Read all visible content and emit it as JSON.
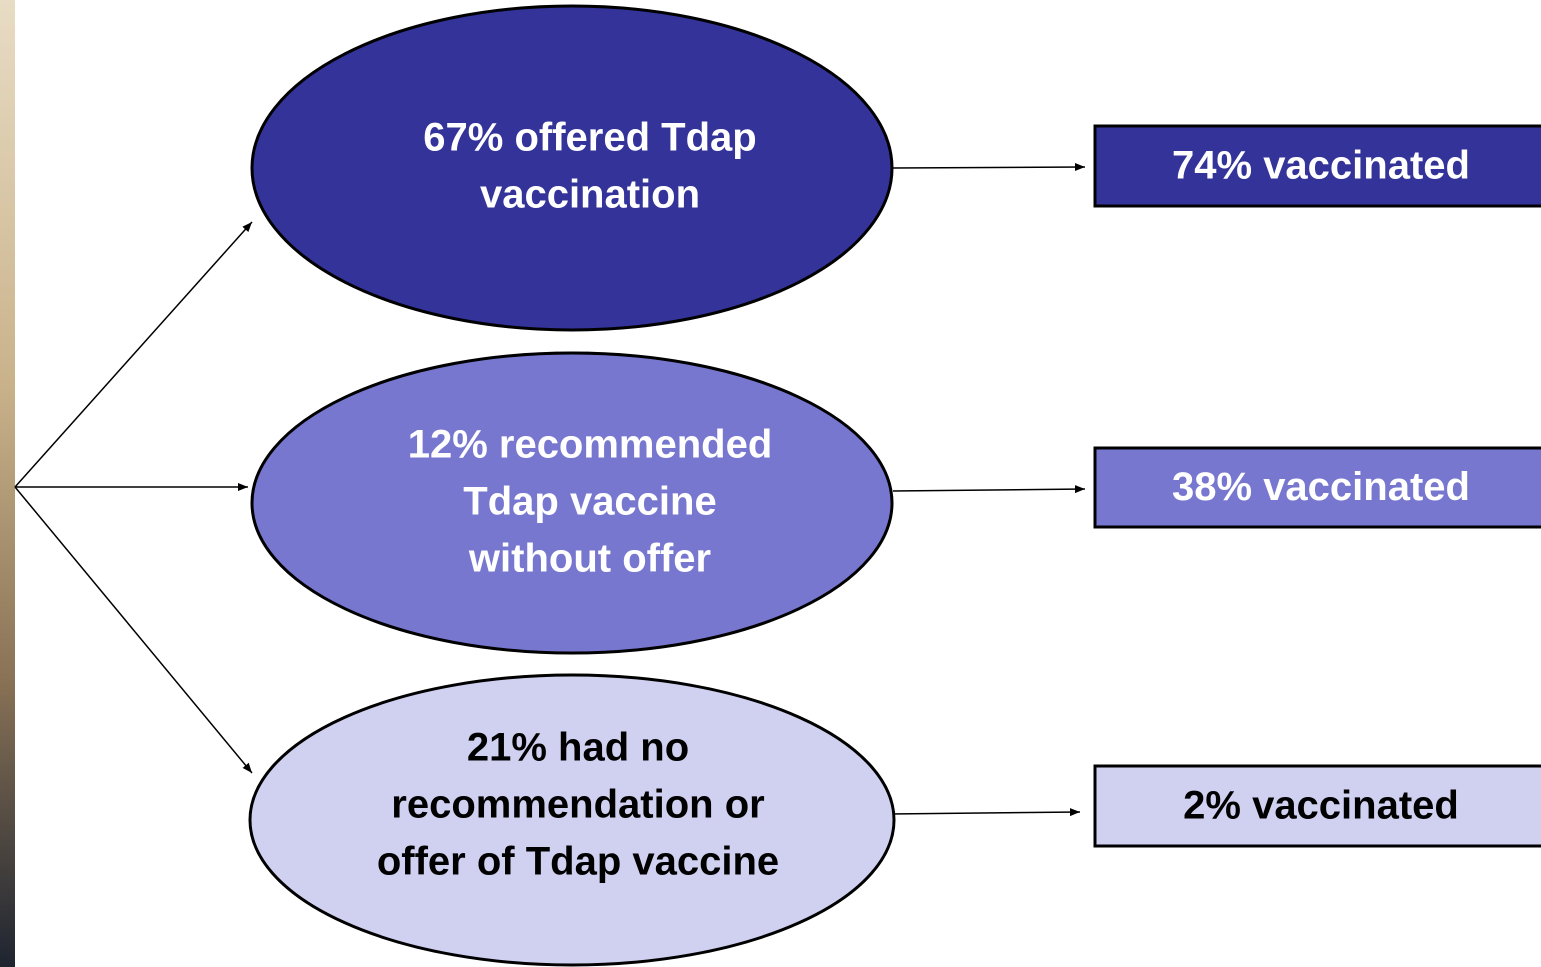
{
  "nodes": [
    {
      "lines": [
        "67% offered Tdap",
        "vaccination"
      ]
    },
    {
      "lines": [
        "12% recommended",
        "Tdap vaccine",
        "without offer"
      ]
    },
    {
      "lines": [
        "21% had no",
        "recommendation or",
        "offer of Tdap vaccine"
      ]
    }
  ],
  "outcomes": [
    "74% vaccinated",
    "38% vaccinated",
    "2% vaccinated"
  ]
}
